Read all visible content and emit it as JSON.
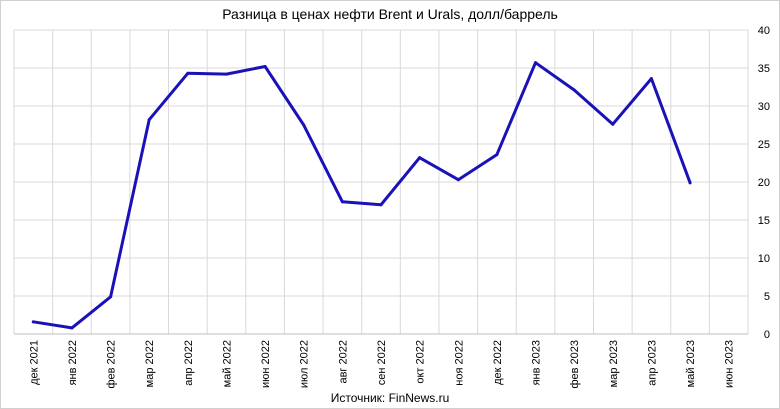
{
  "chart_data": {
    "type": "line",
    "title": "Разница в ценах нефти Brent и Urals, долл/баррель",
    "source": "Источник: FinNews.ru",
    "categories": [
      "дек 2021",
      "янв 2022",
      "фев 2022",
      "мар 2022",
      "апр 2022",
      "май 2022",
      "июн 2022",
      "июл 2022",
      "авг 2022",
      "сен 2022",
      "окт 2022",
      "ноя 2022",
      "дек 2022",
      "янв 2023",
      "фев 2023",
      "мар 2023",
      "апр 2023",
      "май 2023",
      "июн 2023"
    ],
    "series": [
      {
        "values": [
          1.6,
          0.8,
          4.9,
          28.2,
          34.3,
          34.2,
          35.2,
          27.5,
          17.4,
          17.0,
          23.2,
          20.3,
          23.6,
          35.7,
          32.1,
          27.6,
          33.6,
          19.9,
          null
        ]
      }
    ],
    "y_ticks": [
      "0",
      "5",
      "10",
      "15",
      "20",
      "25",
      "30",
      "35",
      "40"
    ],
    "ylim": [
      0,
      40
    ],
    "y_axis_side": "right",
    "grid": true,
    "line_color": "#1a12b8"
  }
}
